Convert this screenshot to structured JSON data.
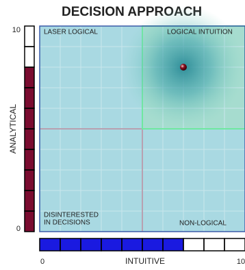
{
  "title": "DECISION APPROACH",
  "y_axis": {
    "label": "ANALYTICAL",
    "range": [
      0,
      10
    ]
  },
  "x_axis": {
    "label": "INTUITIVE",
    "range": [
      0,
      10
    ]
  },
  "quadrants": {
    "top_left": [
      "LASER LOGICAL"
    ],
    "top_right": [
      "LOGICAL INTUITION"
    ],
    "bottom_left": [
      "DISINTERESTED",
      "IN DECISIONS"
    ],
    "bottom_right": [
      "NON-LOGICAL"
    ]
  },
  "scores": {
    "analytical": 8,
    "intuitive": 7
  }
}
